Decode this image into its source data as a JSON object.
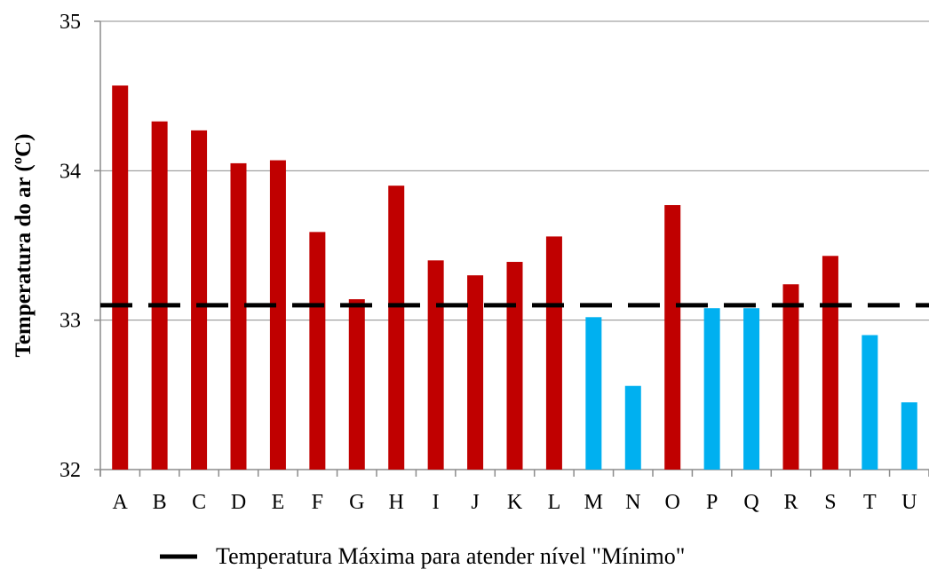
{
  "chart_data": {
    "type": "bar",
    "title": "",
    "xlabel": "",
    "ylabel": "Temperatura  do ar (ºC)",
    "ylim": [
      32,
      35
    ],
    "yticks": [
      32,
      33,
      34,
      35
    ],
    "grid": true,
    "categories": [
      "A",
      "B",
      "C",
      "D",
      "E",
      "F",
      "G",
      "H",
      "I",
      "J",
      "K",
      "L",
      "M",
      "N",
      "O",
      "P",
      "Q",
      "R",
      "S",
      "T",
      "U"
    ],
    "values": [
      34.57,
      34.33,
      34.27,
      34.05,
      34.07,
      33.59,
      33.14,
      33.9,
      33.4,
      33.3,
      33.39,
      33.56,
      33.02,
      32.56,
      33.77,
      33.08,
      33.08,
      33.24,
      33.43,
      32.9,
      32.45
    ],
    "bar_colors": [
      "#c00000",
      "#c00000",
      "#c00000",
      "#c00000",
      "#c00000",
      "#c00000",
      "#c00000",
      "#c00000",
      "#c00000",
      "#c00000",
      "#c00000",
      "#c00000",
      "#00b0f0",
      "#00b0f0",
      "#c00000",
      "#00b0f0",
      "#00b0f0",
      "#c00000",
      "#c00000",
      "#00b0f0",
      "#00b0f0"
    ],
    "reference_line": {
      "value": 33.1,
      "style": "dashed",
      "color": "#000000",
      "label": "Temperatura Máxima para atender nível \"Mínimo\""
    },
    "legend": {
      "position": "bottom"
    }
  }
}
